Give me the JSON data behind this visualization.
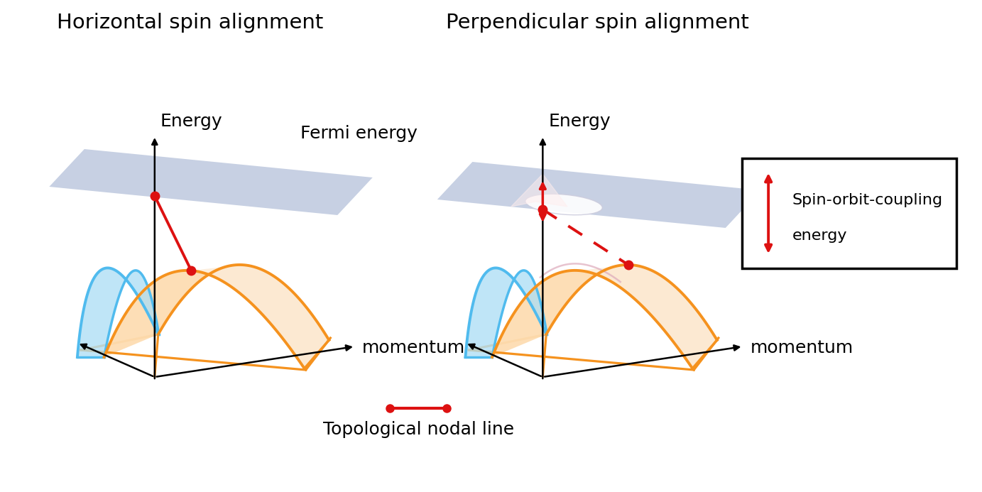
{
  "title_left": "Horizontal spin alignment",
  "title_right": "Perpendicular spin alignment",
  "label_energy": "Energy",
  "label_momentum": "momentum",
  "label_fermi": "Fermi energy",
  "label_nodal": "Topological nodal line",
  "label_soc_line1": "Spin-orbit-coupling",
  "label_soc_line2": "energy",
  "bg_color": "#ffffff",
  "orange_color": "#F5921E",
  "cyan_color": "#50BBEE",
  "fill_color": "#FDDCB0",
  "fill_color2": "#FCEBD8",
  "plane_color": "#99AACC",
  "plane_alpha": 0.55,
  "red_color": "#DD1111",
  "title_fontsize": 21,
  "label_fontsize": 18,
  "momentum_fontsize": 18,
  "soc_fontsize": 16
}
